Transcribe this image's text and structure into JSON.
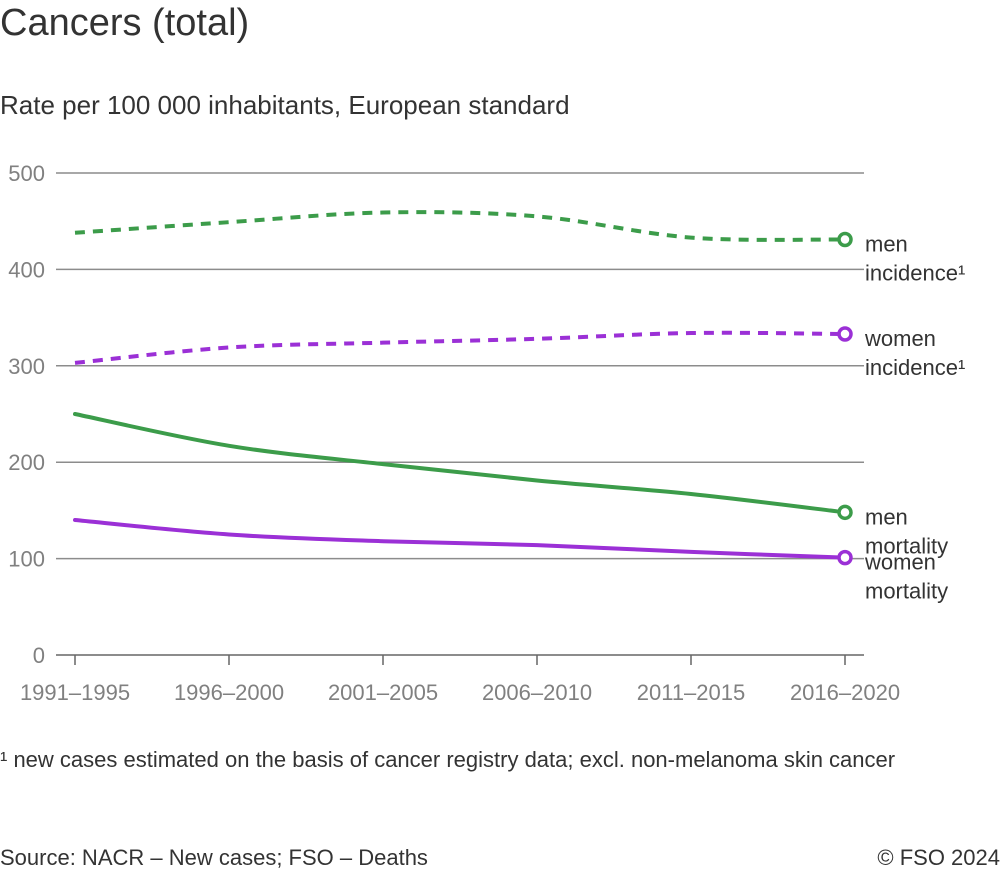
{
  "chart_data": {
    "type": "line",
    "title": "Cancers (total)",
    "subtitle": "Rate per 100 000 inhabitants, European standard",
    "categories": [
      "1991–1995",
      "1996–2000",
      "2001–2005",
      "2006–2010",
      "2011–2015",
      "2016–2020"
    ],
    "ylim": [
      0,
      500
    ],
    "yticks": [
      0,
      100,
      200,
      300,
      400,
      500
    ],
    "grid": true,
    "series": [
      {
        "name": "men incidence¹",
        "label_lines": [
          "men",
          "incidence¹"
        ],
        "color": "#3c9c4a",
        "style": "dashed",
        "values": [
          438,
          449,
          459,
          455,
          433,
          431
        ]
      },
      {
        "name": "women incidence¹",
        "label_lines": [
          "women",
          "incidence¹"
        ],
        "color": "#9b30d6",
        "style": "dashed",
        "values": [
          303,
          319,
          324,
          328,
          334,
          333
        ]
      },
      {
        "name": "men mortality",
        "label_lines": [
          "men",
          "mortality"
        ],
        "color": "#3c9c4a",
        "style": "solid",
        "values": [
          250,
          217,
          198,
          181,
          167,
          148
        ]
      },
      {
        "name": "women mortality",
        "label_lines": [
          "women",
          "mortality"
        ],
        "color": "#9b30d6",
        "style": "solid",
        "values": [
          140,
          125,
          118,
          114,
          107,
          101
        ]
      }
    ]
  },
  "footnote": "¹ new cases estimated on the basis of cancer registry data; excl. non-melanoma skin cancer",
  "source": "Source: NACR – New cases; FSO – Deaths",
  "copyright": "© FSO 2024"
}
